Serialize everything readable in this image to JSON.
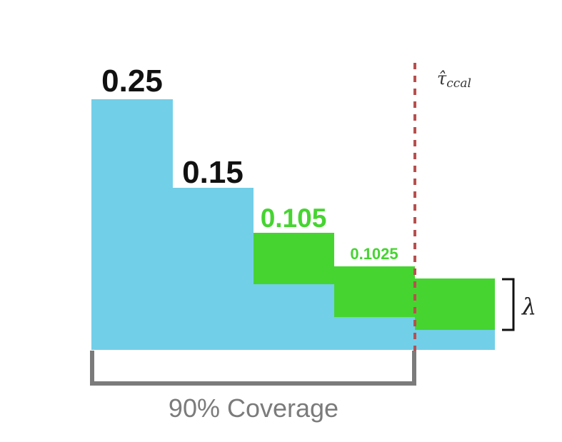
{
  "colors": {
    "blue": "#72cfe8",
    "green": "#46d431",
    "dashed_line": "#b84f4f",
    "bracket": "#7b7b7b",
    "text_dark": "#111111",
    "text_green": "#46d431"
  },
  "steps": [
    {
      "label": "0.25",
      "color_key": "text_dark"
    },
    {
      "label": "0.15",
      "color_key": "text_dark"
    },
    {
      "label": "0.105",
      "color_key": "text_green"
    },
    {
      "label": "0.1025",
      "color_key": "text_green"
    }
  ],
  "threshold_label": "τ̂",
  "threshold_subscript": "ccal",
  "lambda_label": "λ",
  "coverage_label": "90% Coverage"
}
